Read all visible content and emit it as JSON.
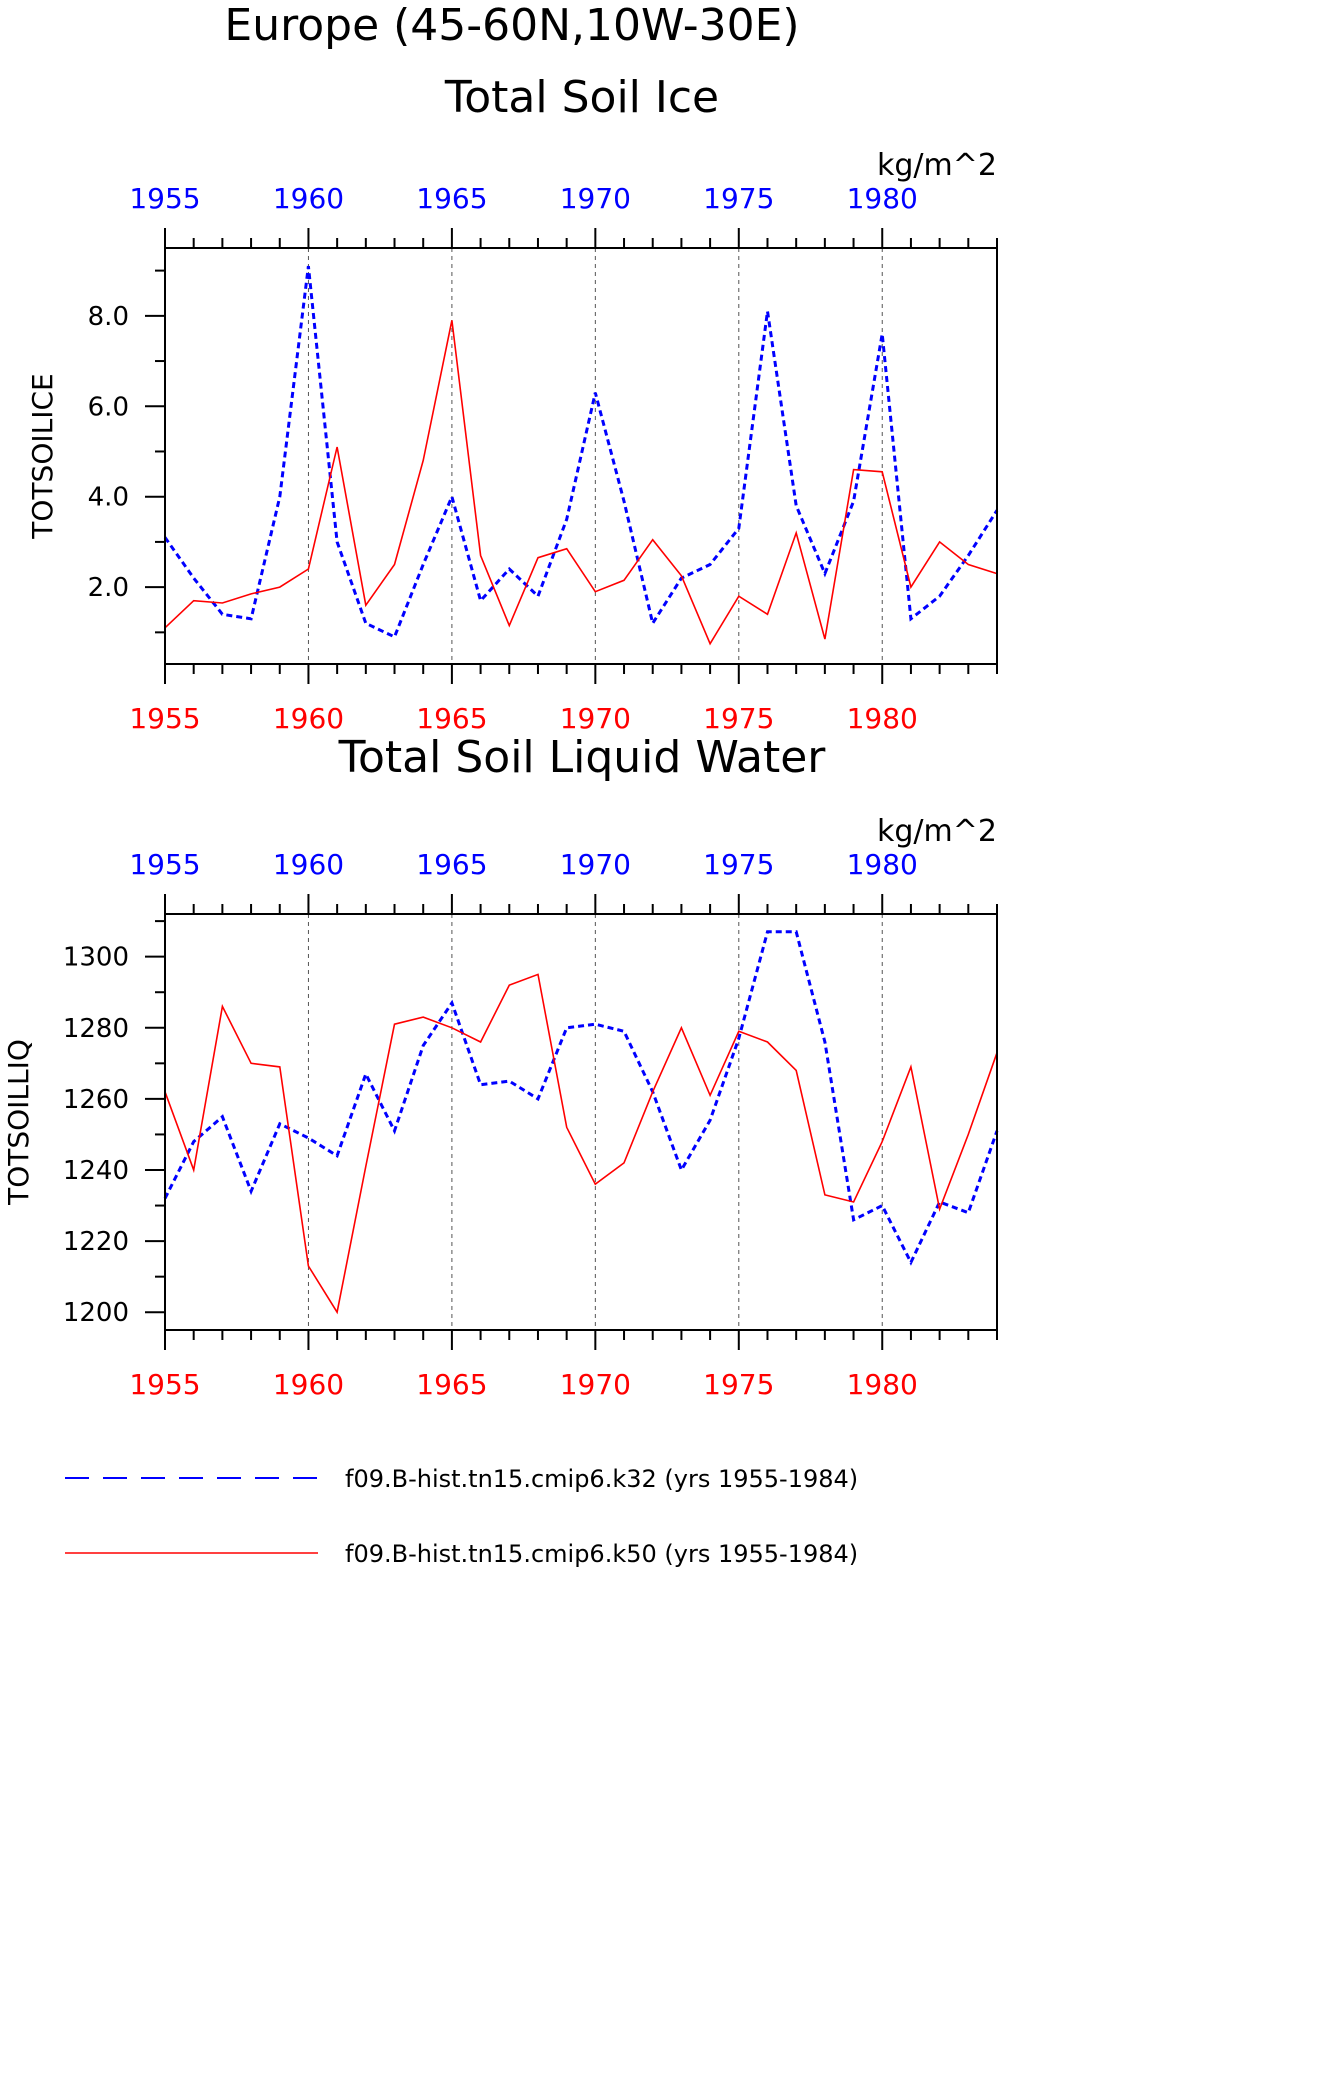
{
  "page": {
    "title": "Europe (45-60N,10W-30E)"
  },
  "colors": {
    "k32": "#0000ff",
    "k50": "#ff0000",
    "axis": "#000000",
    "grid": "#555555"
  },
  "legend": [
    {
      "label": "f09.B-hist.tn15.cmip6.k32 (yrs 1955-1984)",
      "style": "dashed",
      "color": "#0000ff"
    },
    {
      "label": "f09.B-hist.tn15.cmip6.k50 (yrs 1955-1984)",
      "style": "solid",
      "color": "#ff0000"
    }
  ],
  "chart_data": [
    {
      "type": "line",
      "title": "Total Soil Ice",
      "ylabel": "TOTSOILICE",
      "units": "kg/m^2",
      "xlim": [
        1955,
        1984
      ],
      "ylim": [
        0.3,
        9.5
      ],
      "yticks": [
        2.0,
        4.0,
        6.0,
        8.0
      ],
      "ytick_labels": [
        "2.0",
        "4.0",
        "6.0",
        "8.0"
      ],
      "yminor": [
        1.0,
        3.0,
        5.0,
        7.0,
        9.0
      ],
      "xticks": [
        1955,
        1960,
        1965,
        1970,
        1975,
        1980
      ],
      "xtick_labels": [
        "1955",
        "1960",
        "1965",
        "1970",
        "1975",
        "1980"
      ],
      "grid_x": [
        1960,
        1965,
        1970,
        1975,
        1980
      ],
      "x": [
        1955,
        1956,
        1957,
        1958,
        1959,
        1960,
        1961,
        1962,
        1963,
        1964,
        1965,
        1966,
        1967,
        1968,
        1969,
        1970,
        1971,
        1972,
        1973,
        1974,
        1975,
        1976,
        1977,
        1978,
        1979,
        1980,
        1981,
        1982,
        1983,
        1984
      ],
      "series": [
        {
          "name": "f09.B-hist.tn15.cmip6.k32 (yrs 1955-1984)",
          "key": "k32",
          "style": "dashed",
          "values": [
            3.1,
            2.2,
            1.4,
            1.3,
            4.0,
            9.1,
            3.0,
            1.2,
            0.9,
            2.5,
            4.0,
            1.7,
            2.4,
            1.8,
            3.5,
            6.3,
            3.9,
            1.2,
            2.2,
            2.5,
            3.3,
            8.1,
            3.8,
            2.3,
            3.9,
            7.6,
            1.3,
            1.8,
            2.7,
            3.7
          ]
        },
        {
          "name": "f09.B-hist.tn15.cmip6.k50 (yrs 1955-1984)",
          "key": "k50",
          "style": "solid",
          "values": [
            1.1,
            1.7,
            1.65,
            1.85,
            2.0,
            2.4,
            5.1,
            1.6,
            2.5,
            4.8,
            7.9,
            2.7,
            1.15,
            2.65,
            2.85,
            1.9,
            2.15,
            3.05,
            2.25,
            0.75,
            1.8,
            1.4,
            3.2,
            0.85,
            4.6,
            4.55,
            2.0,
            3.0,
            2.5,
            2.3
          ]
        }
      ]
    },
    {
      "type": "line",
      "title": "Total Soil Liquid Water",
      "ylabel": "TOTSOILLIQ",
      "units": "kg/m^2",
      "xlim": [
        1955,
        1984
      ],
      "ylim": [
        1195,
        1312
      ],
      "yticks": [
        1200,
        1220,
        1240,
        1260,
        1280,
        1300
      ],
      "ytick_labels": [
        "1200",
        "1220",
        "1240",
        "1260",
        "1280",
        "1300"
      ],
      "yminor": [
        1210,
        1230,
        1250,
        1270,
        1290,
        1310
      ],
      "xticks": [
        1955,
        1960,
        1965,
        1970,
        1975,
        1980
      ],
      "xtick_labels": [
        "1955",
        "1960",
        "1965",
        "1970",
        "1975",
        "1980"
      ],
      "grid_x": [
        1960,
        1965,
        1970,
        1975,
        1980
      ],
      "x": [
        1955,
        1956,
        1957,
        1958,
        1959,
        1960,
        1961,
        1962,
        1963,
        1964,
        1965,
        1966,
        1967,
        1968,
        1969,
        1970,
        1971,
        1972,
        1973,
        1974,
        1975,
        1976,
        1977,
        1978,
        1979,
        1980,
        1981,
        1982,
        1983,
        1984
      ],
      "series": [
        {
          "name": "f09.B-hist.tn15.cmip6.k32 (yrs 1955-1984)",
          "key": "k32",
          "style": "dashed",
          "values": [
            1232,
            1248,
            1255,
            1234,
            1253,
            1249,
            1244,
            1267,
            1251,
            1275,
            1287,
            1264,
            1265,
            1260,
            1280,
            1281,
            1279,
            1262,
            1240,
            1254,
            1277,
            1307,
            1307,
            1276,
            1226,
            1230,
            1214,
            1231,
            1228,
            1251
          ]
        },
        {
          "name": "f09.B-hist.tn15.cmip6.k50 (yrs 1955-1984)",
          "key": "k50",
          "style": "solid",
          "values": [
            1262,
            1240,
            1286,
            1270,
            1269,
            1213,
            1200,
            1241,
            1281,
            1283,
            1280,
            1276,
            1292,
            1295,
            1252,
            1236,
            1242,
            1262,
            1280,
            1261,
            1279,
            1276,
            1268,
            1233,
            1231,
            1248,
            1269,
            1229,
            1250,
            1273
          ]
        }
      ]
    }
  ]
}
